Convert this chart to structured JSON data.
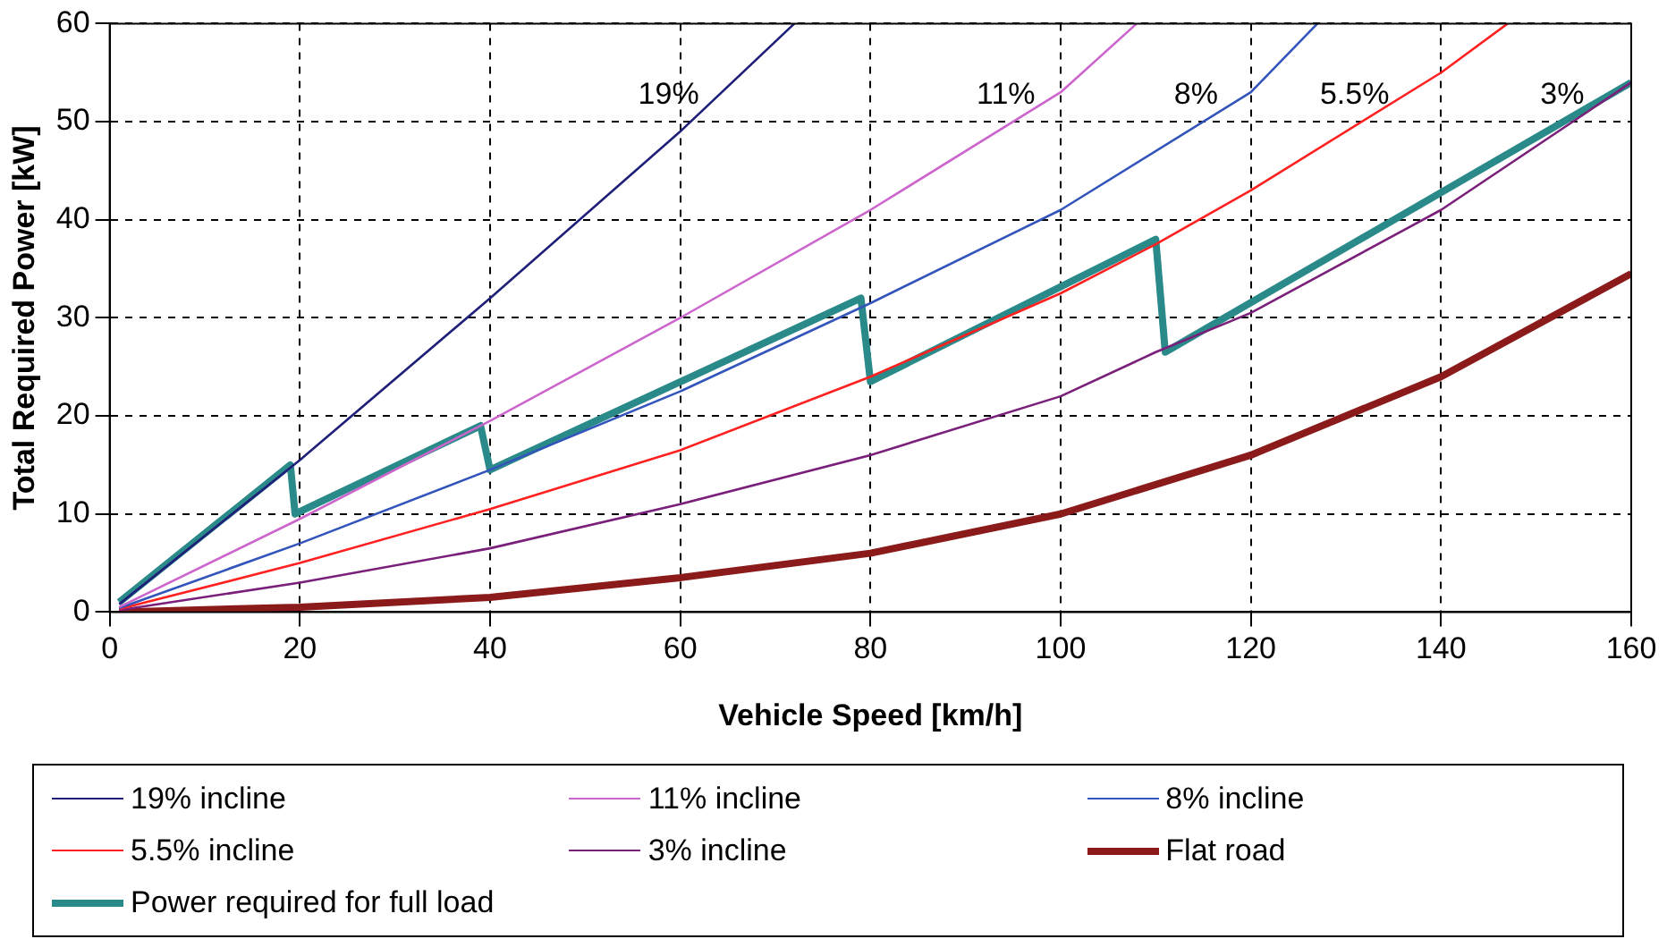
{
  "chart_data": {
    "type": "line",
    "xlabel": "Vehicle Speed [km/h]",
    "ylabel": "Total Required Power [kW]",
    "xlim": [
      0,
      160
    ],
    "xticks": [
      0,
      20,
      40,
      60,
      80,
      100,
      120,
      140,
      160
    ],
    "ylim": [
      0,
      60
    ],
    "yticks": [
      0,
      10,
      20,
      30,
      40,
      50,
      60
    ],
    "grid": true,
    "legend": "bottom",
    "marker": "none",
    "line_style": "solid",
    "series": [
      {
        "name": "19% incline",
        "color": "#1f1f7a",
        "x": [
          1,
          20,
          40,
          60,
          72
        ],
        "values": [
          0.8,
          15.5,
          32,
          49,
          60
        ]
      },
      {
        "name": "11% incline",
        "color": "#cc66cc",
        "x": [
          1,
          20,
          40,
          60,
          80,
          100,
          108
        ],
        "values": [
          0.5,
          9.5,
          19.5,
          30,
          41,
          53,
          60
        ]
      },
      {
        "name": "8% incline",
        "color": "#3355bb",
        "x": [
          1,
          20,
          40,
          60,
          80,
          100,
          120,
          127
        ],
        "values": [
          0.4,
          7,
          14.5,
          22.5,
          31.5,
          41,
          53,
          60
        ]
      },
      {
        "name": "5.5% incline",
        "color": "#ff2020",
        "x": [
          1,
          20,
          40,
          60,
          80,
          100,
          110,
          120,
          140,
          147
        ],
        "values": [
          0.3,
          5,
          10.5,
          16.5,
          24,
          32.5,
          37.5,
          43,
          55,
          60
        ]
      },
      {
        "name": "3% incline",
        "color": "#7a1f7a",
        "x": [
          1,
          20,
          40,
          60,
          80,
          100,
          110,
          120,
          140,
          160
        ],
        "values": [
          0.2,
          3,
          6.5,
          11,
          16,
          22,
          26.5,
          30.5,
          41,
          54
        ]
      },
      {
        "name": "Flat road",
        "color": "#8b1a1a",
        "x": [
          1,
          20,
          40,
          60,
          80,
          100,
          120,
          140,
          160
        ],
        "values": [
          0,
          0.5,
          1.5,
          3.5,
          6,
          10,
          16,
          24,
          34.5
        ]
      },
      {
        "name": "Power required for full load",
        "color": "#2a8a8a",
        "x": [
          1,
          19,
          19.5,
          39,
          40,
          79,
          80,
          110,
          111,
          160
        ],
        "values": [
          1,
          15,
          10,
          19,
          14.5,
          32,
          23.5,
          38,
          26.5,
          54
        ]
      }
    ],
    "annotations": [
      "19%",
      "11%",
      "8%",
      "5.5%",
      "3%"
    ]
  }
}
